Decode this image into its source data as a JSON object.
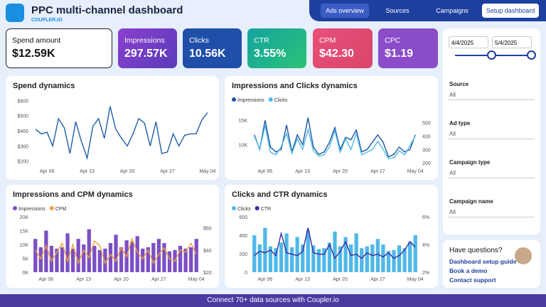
{
  "header": {
    "title": "PPC multi-channel dashboard",
    "brand": "COUPLER.IO",
    "nav": [
      "Ads overview",
      "Sources",
      "Campaigns",
      "Setup dashboard"
    ]
  },
  "kpis": [
    {
      "label": "Spend amount",
      "value": "$12.59K"
    },
    {
      "label": "Impressions",
      "value": "297.57K"
    },
    {
      "label": "Clicks",
      "value": "10.56K"
    },
    {
      "label": "CTR",
      "value": "3.55%"
    },
    {
      "label": "CPM",
      "value": "$42.30"
    },
    {
      "label": "CPC",
      "value": "$1.19"
    }
  ],
  "filters": {
    "date_from": "4/4/2025",
    "date_to": "5/4/2025",
    "fields": [
      {
        "label": "Source",
        "value": "All"
      },
      {
        "label": "Ad type",
        "value": "All"
      },
      {
        "label": "Campaign type",
        "value": "All"
      },
      {
        "label": "Campaign name",
        "value": "All"
      }
    ]
  },
  "help": {
    "title": "Have questions?",
    "links": [
      "Dashboard setup guide",
      "Book a demo",
      "Contact support"
    ]
  },
  "footer": "Connect 70+ data sources with Coupler.io",
  "chart_data": [
    {
      "type": "line",
      "title": "Spend dynamics",
      "color": "#1f5fa8",
      "categories": [
        null,
        null,
        "Apr 06",
        null,
        null,
        null,
        null,
        null,
        null,
        "Apr 13",
        null,
        null,
        null,
        null,
        null,
        null,
        "Apr 20",
        null,
        null,
        null,
        null,
        null,
        null,
        "Apr 27",
        null,
        null,
        null,
        null,
        null,
        null,
        "May 04"
      ],
      "values": [
        410,
        380,
        390,
        300,
        480,
        420,
        250,
        460,
        330,
        220,
        430,
        480,
        350,
        560,
        410,
        350,
        300,
        380,
        480,
        450,
        300,
        460,
        250,
        260,
        380,
        300,
        370,
        380,
        380,
        470,
        520
      ],
      "ylim": [
        180,
        620
      ],
      "yticks": [
        {
          "value": 200,
          "label": "$200"
        },
        {
          "value": 300,
          "label": "$300"
        },
        {
          "value": 400,
          "label": "$400"
        },
        {
          "value": 500,
          "label": "$500"
        },
        {
          "value": 600,
          "label": "$600"
        }
      ]
    },
    {
      "type": "line",
      "title": "Impressions and Clicks dynamics",
      "legend": "top-left",
      "categories": [
        null,
        null,
        "Apr 06",
        null,
        null,
        null,
        null,
        null,
        null,
        "Apr 13",
        null,
        null,
        null,
        null,
        null,
        null,
        "Apr 20",
        null,
        null,
        null,
        null,
        null,
        null,
        "Apr 27",
        null,
        null,
        null,
        null,
        null,
        null,
        "May 04"
      ],
      "series": [
        {
          "name": "Impressions",
          "color": "#1a56a0",
          "values": [
            12000,
            9000,
            15000,
            9500,
            8500,
            9000,
            14000,
            8500,
            12000,
            10000,
            15500,
            9500,
            8000,
            8500,
            10500,
            13500,
            9000,
            11500,
            11000,
            13000,
            8500,
            9000,
            10500,
            12000,
            10500,
            7500,
            8000,
            9500,
            8500,
            9000,
            12000
          ]
        },
        {
          "name": "Clicks",
          "color": "#4fb8e8",
          "axis": "y2",
          "values": [
            400,
            300,
            480,
            280,
            260,
            320,
            420,
            270,
            380,
            300,
            450,
            290,
            250,
            260,
            320,
            440,
            280,
            380,
            300,
            420,
            260,
            280,
            300,
            360,
            300,
            230,
            240,
            290,
            260,
            330,
            400
          ]
        }
      ],
      "ylim": [
        6000,
        17500
      ],
      "yticks": [
        {
          "value": 10000,
          "label": "10K"
        },
        {
          "value": 15000,
          "label": "15K"
        }
      ],
      "y2lim": [
        190,
        610
      ],
      "y2ticks": [
        200,
        300,
        400,
        500
      ]
    },
    {
      "type": "combo",
      "title": "Impressions and CPM dynamics",
      "legend": "top-left",
      "categories": [
        null,
        null,
        "Apr 06",
        null,
        null,
        null,
        null,
        null,
        null,
        "Apr 13",
        null,
        null,
        null,
        null,
        null,
        null,
        "Apr 20",
        null,
        null,
        null,
        null,
        null,
        null,
        "Apr 27",
        null,
        null,
        null,
        null,
        null,
        null,
        "May 04"
      ],
      "series": [
        {
          "name": "Impressions",
          "type": "bar",
          "color": "#7b4fc4",
          "values": [
            12000,
            9000,
            15000,
            9500,
            8500,
            9000,
            14000,
            8500,
            12000,
            10000,
            15500,
            9500,
            8000,
            8500,
            10500,
            13500,
            9000,
            11500,
            11000,
            13000,
            8500,
            9000,
            10500,
            12000,
            10500,
            7500,
            8000,
            9500,
            8500,
            9000,
            12000
          ]
        },
        {
          "name": "CPM",
          "type": "line",
          "color": "#f0a040",
          "axis": "y2",
          "values": [
            40,
            32,
            44,
            30,
            38,
            46,
            30,
            45,
            28,
            40,
            33,
            48,
            44,
            28,
            36,
            30,
            42,
            34,
            50,
            38,
            32,
            40,
            28,
            36,
            42,
            32,
            30,
            40,
            38,
            46,
            36
          ]
        }
      ],
      "ylim": [
        0,
        20000
      ],
      "yticks": [
        {
          "value": 0,
          "label": "0K"
        },
        {
          "value": 5000,
          "label": "5K"
        },
        {
          "value": 10000,
          "label": "10K"
        },
        {
          "value": 15000,
          "label": "15K"
        },
        {
          "value": 20000,
          "label": "20K"
        }
      ],
      "y2lim": [
        20,
        70
      ],
      "y2ticks": [
        {
          "value": 20,
          "label": "$20"
        },
        {
          "value": 40,
          "label": "$40"
        },
        {
          "value": 60,
          "label": "$60"
        }
      ]
    },
    {
      "type": "combo",
      "title": "Clicks and CTR dynamics",
      "legend": "top-left",
      "categories": [
        null,
        null,
        "Apr 06",
        null,
        null,
        null,
        null,
        null,
        null,
        "Apr 13",
        null,
        null,
        null,
        null,
        null,
        null,
        "Apr 20",
        null,
        null,
        null,
        null,
        null,
        null,
        "Apr 27",
        null,
        null,
        null,
        null,
        null,
        null,
        "May 04"
      ],
      "series": [
        {
          "name": "Clicks",
          "type": "bar",
          "color": "#4fb8e8",
          "values": [
            400,
            300,
            480,
            280,
            260,
            320,
            420,
            270,
            380,
            300,
            450,
            290,
            250,
            260,
            320,
            440,
            280,
            380,
            300,
            420,
            260,
            280,
            300,
            360,
            300,
            230,
            240,
            290,
            260,
            330,
            400
          ]
        },
        {
          "name": "CTR",
          "type": "line",
          "color": "#3a2aa0",
          "axis": "y2",
          "values": [
            3.2,
            3.5,
            3.4,
            3.6,
            3.2,
            4.8,
            3.4,
            3.3,
            3.2,
            3.5,
            5.2,
            3.4,
            3.3,
            3.3,
            4.0,
            3.0,
            3.5,
            4.2,
            3.2,
            3.3,
            3.0,
            3.4,
            3.2,
            3.3,
            3.1,
            3.4,
            3.0,
            3.2,
            3.6,
            4.2,
            3.8
          ]
        }
      ],
      "ylim": [
        0,
        600
      ],
      "yticks": [
        0,
        200,
        400,
        600
      ],
      "y2lim": [
        2,
        6
      ],
      "y2ticks": [
        {
          "value": 2,
          "label": "2%"
        },
        {
          "value": 4,
          "label": "4%"
        },
        {
          "value": 6,
          "label": "6%"
        }
      ]
    }
  ]
}
